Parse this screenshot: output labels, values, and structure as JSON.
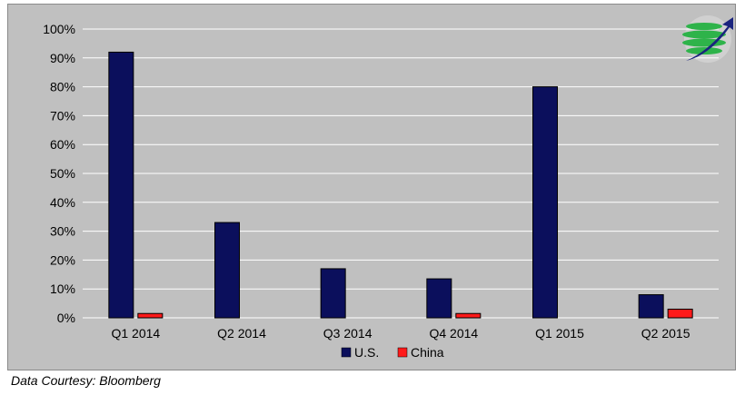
{
  "chart_data": {
    "type": "bar",
    "title": "",
    "xlabel": "",
    "ylabel": "",
    "categories": [
      "Q1 2014",
      "Q2 2014",
      "Q3 2014",
      "Q4 2014",
      "Q1 2015",
      "Q2 2015"
    ],
    "series": [
      {
        "name": "U.S.",
        "color": "#0b0f5c",
        "values": [
          92,
          33,
          17,
          13.5,
          80,
          8
        ]
      },
      {
        "name": "China",
        "color": "#ff1a1a",
        "values": [
          1.5,
          0,
          0,
          1.5,
          0,
          3
        ]
      }
    ],
    "ylim": [
      0,
      100
    ],
    "yticks": [
      0,
      10,
      20,
      30,
      40,
      50,
      60,
      70,
      80,
      90,
      100
    ],
    "ytick_labels": [
      "0%",
      "10%",
      "20%",
      "30%",
      "40%",
      "50%",
      "60%",
      "70%",
      "80%",
      "90%",
      "100%"
    ],
    "grid": true,
    "legend_position": "bottom-center",
    "background": "#c0c0c0"
  },
  "source_note": "Data Courtesy: Bloomberg",
  "logo": {
    "icon": "globe-arrow-logo-icon",
    "colors": [
      "#2eb34a",
      "#1a237e"
    ]
  }
}
